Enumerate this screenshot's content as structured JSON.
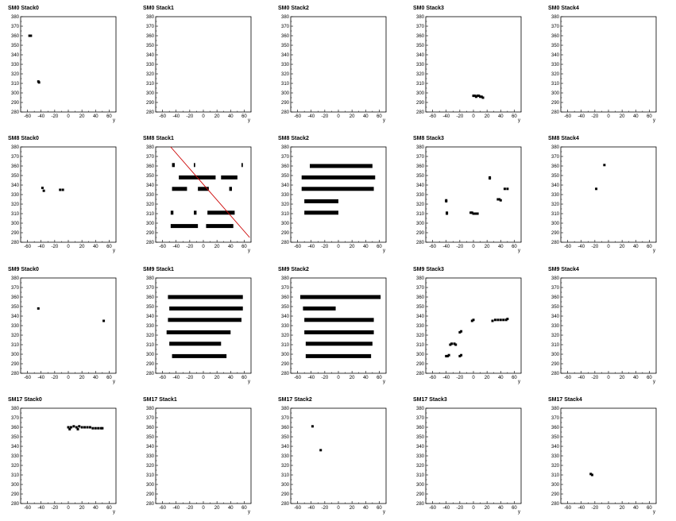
{
  "chart_data": {
    "type": "scatter",
    "x_label": "y",
    "x_ticks": [
      -60,
      -40,
      -20,
      0,
      20,
      40,
      60
    ],
    "y_ticks": [
      280,
      290,
      300,
      310,
      320,
      330,
      340,
      350,
      360,
      370,
      380
    ],
    "xlim": [
      -70,
      70
    ],
    "ylim": [
      280,
      380
    ],
    "grid": false,
    "legend": "none",
    "colors": {
      "marker": "#000000",
      "fit_line": "#cc0000",
      "frame": "#000000"
    },
    "panels": [
      {
        "title": "SM0 Stack0",
        "points": [
          [
            -57,
            360
          ],
          [
            -56,
            360
          ],
          [
            -55,
            360
          ],
          [
            -44,
            312
          ],
          [
            -43,
            311
          ]
        ]
      },
      {
        "title": "SM0 Stack1",
        "points": []
      },
      {
        "title": "SM0 Stack2",
        "points": []
      },
      {
        "title": "SM0 Stack3",
        "points": [
          [
            0,
            297
          ],
          [
            2,
            297
          ],
          [
            4,
            296
          ],
          [
            6,
            297
          ],
          [
            8,
            297
          ],
          [
            10,
            296
          ],
          [
            12,
            296
          ],
          [
            14,
            295
          ]
        ]
      },
      {
        "title": "SM0 Stack4",
        "points": []
      },
      {
        "title": "SM8 Stack0",
        "points": [
          [
            -38,
            337
          ],
          [
            -36,
            334
          ],
          [
            -12,
            335
          ],
          [
            -8,
            335
          ]
        ]
      },
      {
        "title": "SM8 Stack1",
        "segments": [
          [
            -46,
            -42,
            361
          ],
          [
            -14,
            -12,
            361
          ],
          [
            56,
            58,
            361
          ],
          [
            -36,
            18,
            348
          ],
          [
            26,
            50,
            348
          ],
          [
            -46,
            -24,
            336
          ],
          [
            -8,
            8,
            336
          ],
          [
            38,
            42,
            336
          ],
          [
            -48,
            -44,
            311
          ],
          [
            -14,
            -10,
            311
          ],
          [
            6,
            46,
            311
          ],
          [
            -48,
            -8,
            297
          ],
          [
            4,
            44,
            297
          ]
        ],
        "fit_line": [
          [
            -48,
            380
          ],
          [
            68,
            285
          ]
        ]
      },
      {
        "title": "SM8 Stack2",
        "segments": [
          [
            -42,
            50,
            360
          ],
          [
            -54,
            54,
            348
          ],
          [
            -54,
            52,
            336
          ],
          [
            -50,
            0,
            323
          ],
          [
            -50,
            0,
            311
          ]
        ]
      },
      {
        "title": "SM8 Stack3",
        "points": [
          [
            -40,
            324
          ],
          [
            -40,
            323
          ],
          [
            -39,
            311
          ],
          [
            -39,
            310
          ],
          [
            -4,
            311
          ],
          [
            -2,
            311
          ],
          [
            0,
            310
          ],
          [
            2,
            310
          ],
          [
            4,
            310
          ],
          [
            6,
            310
          ],
          [
            24,
            348
          ],
          [
            24,
            347
          ],
          [
            36,
            325
          ],
          [
            38,
            325
          ],
          [
            40,
            324
          ],
          [
            46,
            336
          ],
          [
            50,
            336
          ]
        ]
      },
      {
        "title": "SM8 Stack4",
        "points": [
          [
            -18,
            336
          ],
          [
            -6,
            361
          ]
        ]
      },
      {
        "title": "SM9 Stack0",
        "points": [
          [
            -44,
            348
          ],
          [
            52,
            335
          ]
        ]
      },
      {
        "title": "SM9 Stack1",
        "segments": [
          [
            -52,
            58,
            360
          ],
          [
            -50,
            58,
            348
          ],
          [
            -52,
            56,
            336
          ],
          [
            -54,
            40,
            323
          ],
          [
            -50,
            26,
            311
          ],
          [
            -46,
            34,
            298
          ]
        ]
      },
      {
        "title": "SM9 Stack2",
        "segments": [
          [
            -56,
            62,
            360
          ],
          [
            -52,
            -4,
            348
          ],
          [
            -50,
            52,
            336
          ],
          [
            -50,
            52,
            323
          ],
          [
            -48,
            50,
            311
          ],
          [
            -48,
            48,
            298
          ]
        ]
      },
      {
        "title": "SM9 Stack3",
        "points": [
          [
            -40,
            298
          ],
          [
            -38,
            298
          ],
          [
            -36,
            299
          ],
          [
            -34,
            310
          ],
          [
            -32,
            311
          ],
          [
            -28,
            311
          ],
          [
            -26,
            310
          ],
          [
            -20,
            298
          ],
          [
            -18,
            299
          ],
          [
            -20,
            323
          ],
          [
            -18,
            324
          ],
          [
            -2,
            335
          ],
          [
            0,
            336
          ],
          [
            28,
            335
          ],
          [
            32,
            336
          ],
          [
            36,
            336
          ],
          [
            40,
            336
          ],
          [
            44,
            336
          ],
          [
            48,
            336
          ],
          [
            50,
            337
          ]
        ]
      },
      {
        "title": "SM9 Stack4",
        "points": []
      },
      {
        "title": "SM17 Stack0",
        "points": [
          [
            0,
            360
          ],
          [
            4,
            360
          ],
          [
            8,
            361
          ],
          [
            12,
            360
          ],
          [
            16,
            361
          ],
          [
            20,
            360
          ],
          [
            24,
            360
          ],
          [
            28,
            360
          ],
          [
            32,
            360
          ],
          [
            36,
            359
          ],
          [
            40,
            359
          ],
          [
            44,
            359
          ],
          [
            48,
            359
          ],
          [
            50,
            359
          ],
          [
            2,
            358
          ],
          [
            14,
            358
          ]
        ]
      },
      {
        "title": "SM17 Stack1",
        "points": []
      },
      {
        "title": "SM17 Stack2",
        "points": [
          [
            -38,
            361
          ],
          [
            -26,
            336
          ]
        ]
      },
      {
        "title": "SM17 Stack3",
        "points": []
      },
      {
        "title": "SM17 Stack4",
        "points": [
          [
            -26,
            311
          ],
          [
            -24,
            310
          ]
        ]
      }
    ]
  }
}
